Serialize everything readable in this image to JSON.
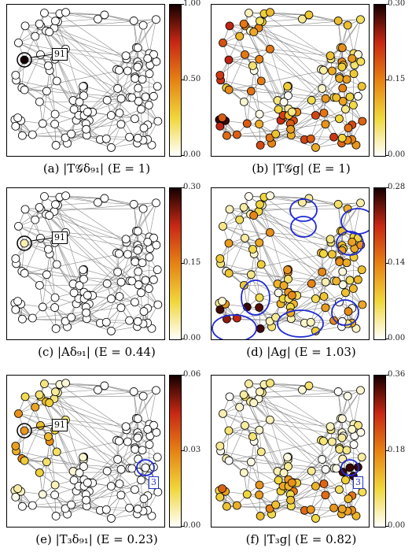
{
  "panels": [
    {
      "id": "a",
      "caption": "(a) |T𝒢δ₉₁| (E = 1)",
      "cbar": {
        "max": "1.00",
        "mid": "0.50",
        "min": "0.00"
      },
      "callout": "91",
      "callout_style": "black",
      "circles": 0
    },
    {
      "id": "b",
      "caption": "(b) |T𝒢g| (E = 1)",
      "cbar": {
        "max": "0.30",
        "mid": "0.15",
        "min": "0.00"
      },
      "callout": "",
      "callout_style": "",
      "circles": 0
    },
    {
      "id": "c",
      "caption": "(c) |Aδ₉₁| (E = 0.44)",
      "cbar": {
        "max": "0.30",
        "mid": "0.15",
        "min": "0.00"
      },
      "callout": "91",
      "callout_style": "black",
      "circles": 0
    },
    {
      "id": "d",
      "caption": "(d) |Ag| (E = 1.03)",
      "cbar": {
        "max": "0.28",
        "mid": "0.14",
        "min": "0.00"
      },
      "callout": "",
      "callout_style": "",
      "circles": 8
    },
    {
      "id": "e",
      "caption": "(e) |T₃δ₉₁| (E = 0.23)",
      "cbar": {
        "max": "0.06",
        "mid": "0.03",
        "min": "0.00"
      },
      "callout": "91",
      "callout_style": "black",
      "callout2": "3",
      "circles": 1
    },
    {
      "id": "f",
      "caption": "(f) |T₃g| (E = 0.82)",
      "cbar": {
        "max": "0.36",
        "mid": "0.18",
        "min": "0.00"
      },
      "callout": "3",
      "callout_style": "blue",
      "circles": 1
    }
  ],
  "colors": {
    "edge": "#8a8a8a",
    "node_stroke": "#000000",
    "circle": "#1f2ad0"
  }
}
